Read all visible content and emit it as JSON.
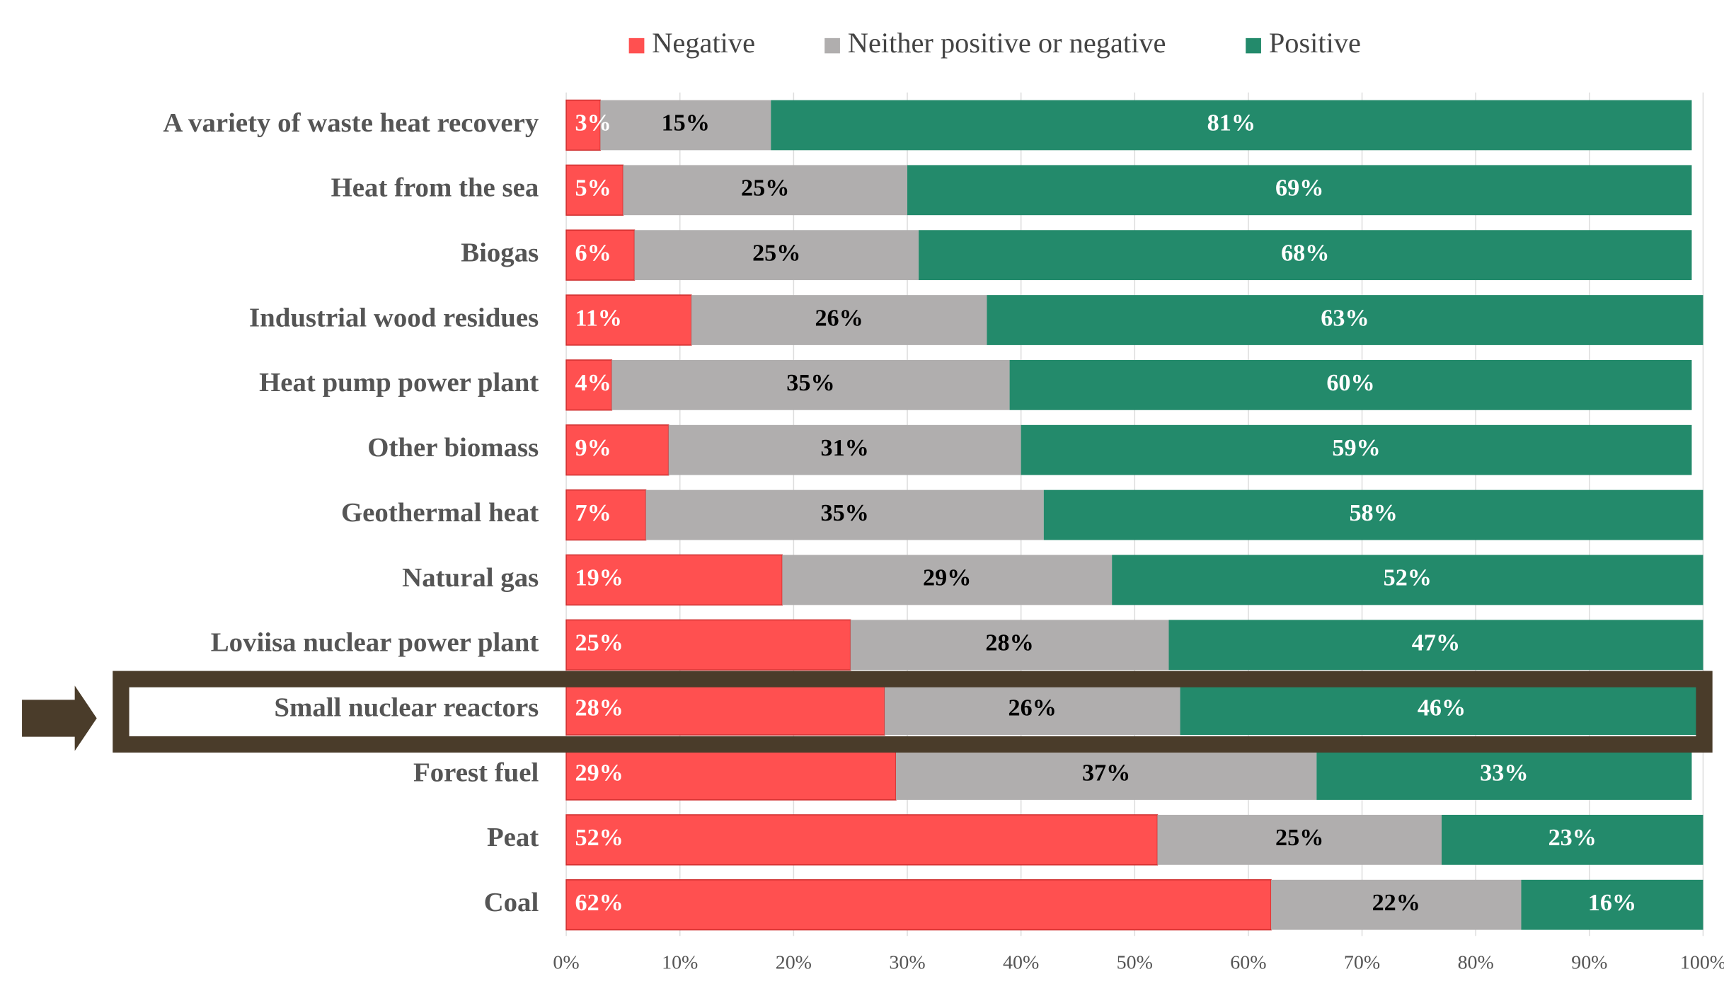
{
  "chart_data": {
    "type": "stacked_bar_horizontal",
    "categories": [
      "A variety of waste heat recovery",
      "Heat from the sea",
      "Biogas",
      "Industrial wood residues",
      "Heat pump power plant",
      "Other biomass",
      "Geothermal heat",
      "Natural gas",
      "Loviisa nuclear power plant",
      "Small nuclear reactors",
      "Forest fuel",
      "Peat",
      "Coal"
    ],
    "series": [
      {
        "name": "Negative",
        "color": "#ff5050",
        "label_color": "#ffffff",
        "values": [
          3,
          5,
          6,
          11,
          4,
          9,
          7,
          19,
          25,
          28,
          29,
          52,
          62
        ],
        "value_labels": [
          "3%",
          "5%",
          "6%",
          "11%",
          "4%",
          "9%",
          "7%",
          "19%",
          "25%",
          "28%",
          "29%",
          "52%",
          "62%"
        ]
      },
      {
        "name": "Neither positive or negative",
        "color": "#b0aeae",
        "label_color": "#000000",
        "values": [
          15,
          25,
          25,
          26,
          35,
          31,
          35,
          29,
          28,
          26,
          37,
          25,
          22
        ],
        "value_labels": [
          "15%",
          "25%",
          "25%",
          "26%",
          "35%",
          "31%",
          "35%",
          "29%",
          "28%",
          "26%",
          "37%",
          "25%",
          "22%"
        ]
      },
      {
        "name": "Positive",
        "color": "#238a6b",
        "label_color": "#ffffff",
        "values": [
          81,
          69,
          68,
          63,
          60,
          59,
          58,
          52,
          47,
          46,
          33,
          23,
          16
        ],
        "value_labels": [
          "81%",
          "69%",
          "68%",
          "63%",
          "60%",
          "59%",
          "58%",
          "52%",
          "47%",
          "46%",
          "33%",
          "23%",
          "16%"
        ]
      }
    ],
    "xlim": [
      0,
      100
    ],
    "xticks": [
      {
        "value": 0,
        "label": "0%"
      },
      {
        "value": 10,
        "label": "10%"
      },
      {
        "value": 20,
        "label": "20%"
      },
      {
        "value": 30,
        "label": "30%"
      },
      {
        "value": 40,
        "label": "40%"
      },
      {
        "value": 50,
        "label": "50%"
      },
      {
        "value": 60,
        "label": "60%"
      },
      {
        "value": 70,
        "label": "70%"
      },
      {
        "value": 80,
        "label": "80%"
      },
      {
        "value": 90,
        "label": "90%"
      },
      {
        "value": 100,
        "label": "100%"
      }
    ],
    "grid": true,
    "legend": "top"
  }
}
